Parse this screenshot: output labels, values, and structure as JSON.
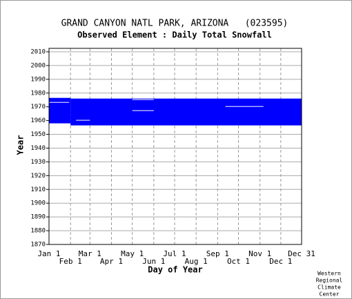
{
  "chart_data": {
    "type": "availability",
    "title": "GRAND CANYON NATL PARK, ARIZONA   (023595)",
    "subtitle": "Observed Element : Daily Total Snowfall",
    "x_label": "Day of Year",
    "y_label": "Year",
    "xlim": [
      1,
      365
    ],
    "ylim": [
      1870,
      2012.5
    ],
    "xticks": [
      {
        "value": 1,
        "label": "Jan 1"
      },
      {
        "value": 32,
        "label": "Feb 1"
      },
      {
        "value": 60,
        "label": "Mar 1"
      },
      {
        "value": 91,
        "label": "Apr 1"
      },
      {
        "value": 121,
        "label": "May 1"
      },
      {
        "value": 152,
        "label": "Jun 1"
      },
      {
        "value": 182,
        "label": "Jul 1"
      },
      {
        "value": 213,
        "label": "Aug 1"
      },
      {
        "value": 244,
        "label": "Sep 1"
      },
      {
        "value": 274,
        "label": "Oct 1"
      },
      {
        "value": 305,
        "label": "Nov 1"
      },
      {
        "value": 335,
        "label": "Dec 1"
      },
      {
        "value": 365,
        "label": "Dec 31"
      }
    ],
    "yticks": [
      1870,
      1880,
      1890,
      1900,
      1910,
      1920,
      1930,
      1940,
      1950,
      1960,
      1970,
      1980,
      1990,
      2000,
      2010
    ],
    "color": "#0000ff",
    "grid": true,
    "blocks": [
      {
        "days": [
          1,
          32
        ],
        "years": [
          1958,
          1976.5
        ]
      },
      {
        "days": [
          32,
          365
        ],
        "years": [
          1956.5,
          1976
        ]
      }
    ],
    "gaps": [
      {
        "days": [
          1,
          30
        ],
        "years": [
          1973,
          1973.5
        ]
      },
      {
        "days": [
          121,
          152
        ],
        "years": [
          1967,
          1967.5
        ]
      },
      {
        "days": [
          121,
          152
        ],
        "years": [
          1975,
          1975.5
        ]
      },
      {
        "days": [
          255,
          310
        ],
        "years": [
          1970,
          1970.5
        ]
      },
      {
        "days": [
          40,
          60
        ],
        "years": [
          1960,
          1960.5
        ]
      }
    ],
    "footer": [
      "Western",
      "Regional",
      "Climate",
      "Center"
    ]
  }
}
